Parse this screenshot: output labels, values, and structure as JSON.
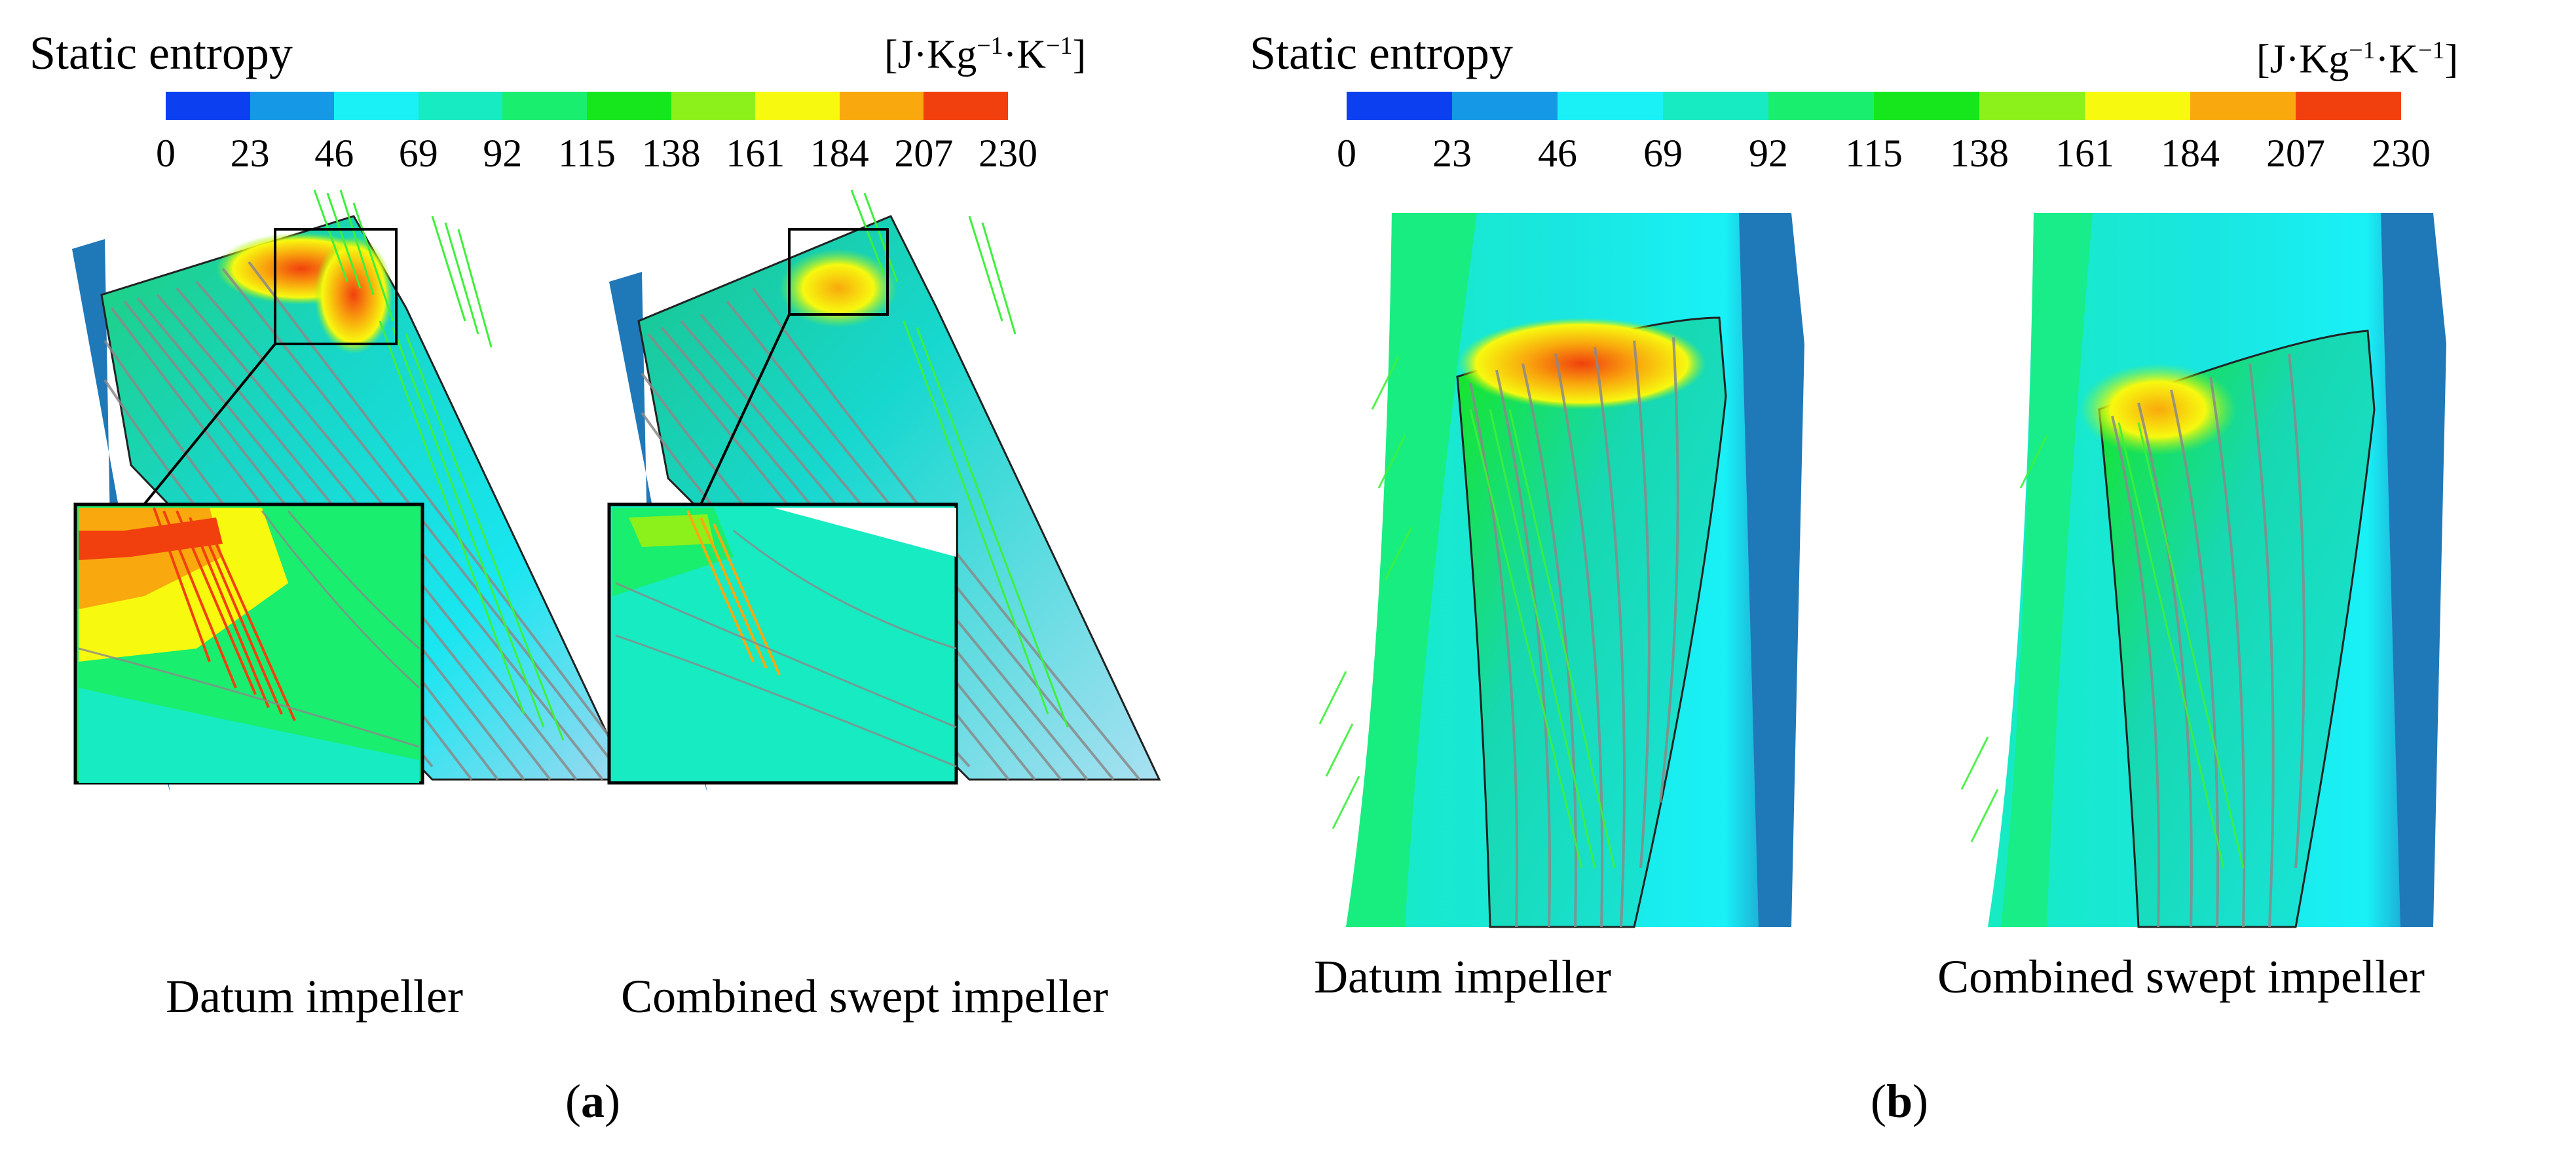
{
  "colorbar": {
    "title": "Static entropy",
    "unit": {
      "prefix": "[J·Kg",
      "exp1": "−1",
      "mid": "·K",
      "exp2": "−1",
      "suffix": "]"
    },
    "ticks": [
      "0",
      "23",
      "46",
      "69",
      "92",
      "115",
      "138",
      "161",
      "184",
      "207",
      "230"
    ],
    "colors": [
      "#0b3ff0",
      "#1599e6",
      "#19f1f7",
      "#16ebc2",
      "#19ee6e",
      "#16e71c",
      "#8cf01b",
      "#f7f90f",
      "#f9a90d",
      "#f1400e"
    ]
  },
  "panel_a": {
    "label_prefix": "(",
    "label_letter": "a",
    "label_suffix": ")",
    "captions": [
      "Datum impeller",
      "Combined swept impeller"
    ]
  },
  "panel_b": {
    "label_prefix": "(",
    "label_letter": "b",
    "label_suffix": ")",
    "captions": [
      "Datum impeller",
      "Combined swept impeller"
    ]
  }
}
